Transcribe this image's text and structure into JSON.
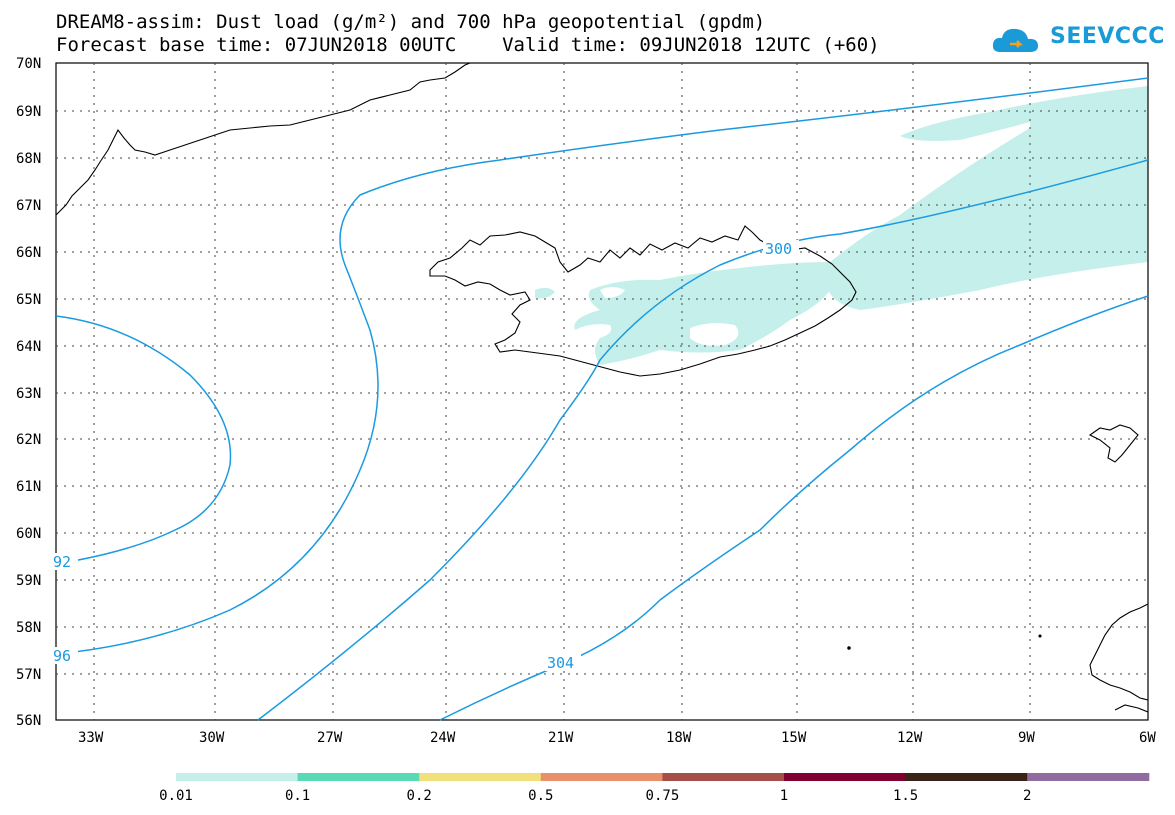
{
  "title": {
    "line1": "DREAM8-assim: Dust load (g/m²) and 700 hPa geopotential (gpdm)",
    "line2": "Forecast base time: 07JUN2018 00UTC    Valid time: 09JUN2018 12UTC (+60)"
  },
  "logo": {
    "text": "SEEVCCC"
  },
  "axes": {
    "lat_labels": [
      "70N",
      "69N",
      "68N",
      "67N",
      "66N",
      "65N",
      "64N",
      "63N",
      "62N",
      "61N",
      "60N",
      "59N",
      "58N",
      "57N",
      "56N"
    ],
    "lon_labels": [
      "33W",
      "30W",
      "27W",
      "24W",
      "21W",
      "18W",
      "15W",
      "12W",
      "9W",
      "6W"
    ]
  },
  "contours": {
    "labels": [
      "92",
      "96",
      "304",
      "300"
    ],
    "color": "#1a9ae0"
  },
  "dust_color": "#c4efea",
  "colorbar": {
    "colors": [
      "#c4efea",
      "#5ad9b6",
      "#f2e07a",
      "#e8906a",
      "#a45048",
      "#800030",
      "#3a2418",
      "#906ca0"
    ],
    "labels": [
      "0.01",
      "0.1",
      "0.2",
      "0.5",
      "0.75",
      "1",
      "1.5",
      "2"
    ]
  }
}
